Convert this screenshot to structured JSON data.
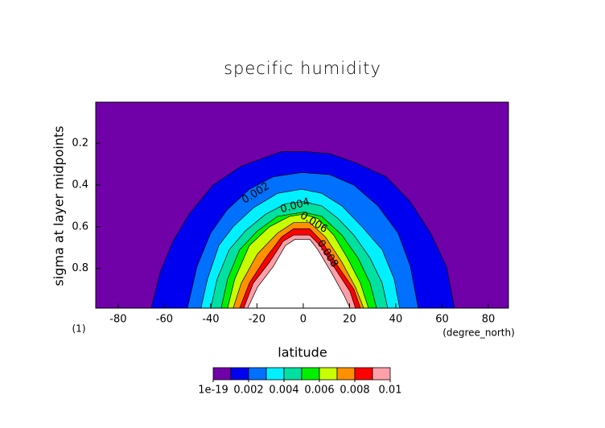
{
  "chart_data": {
    "type": "contour",
    "title": "specific humidity",
    "xlabel": "latitude",
    "ylabel": "sigma at layer midpoints",
    "x_units": "(degree_north)",
    "y_units": "(1)",
    "xlim": [
      -89.7,
      88.7
    ],
    "ylim": [
      0.99,
      0.003
    ],
    "xticks": [
      -80,
      -60,
      -40,
      -20,
      0,
      20,
      40,
      60,
      80
    ],
    "yticks": [
      0.2,
      0.4,
      0.6,
      0.8
    ],
    "colorbar": {
      "levels": [
        1e-19,
        0.001,
        0.002,
        0.003,
        0.004,
        0.005,
        0.006,
        0.007,
        0.008,
        0.009,
        0.01
      ],
      "colors": [
        "#7000a8",
        "#0000f0",
        "#0070ff",
        "#00f0ff",
        "#00e0a0",
        "#00f000",
        "#c8ff00",
        "#ff9000",
        "#ff0000",
        "#ffa0a8"
      ],
      "above_color": "#ffffff",
      "ticks": [
        1e-19,
        0.002,
        0.004,
        0.006,
        0.008,
        0.01
      ]
    },
    "contours": [
      {
        "level": 0.001,
        "x": [
          -65.7,
          -61.6,
          -56.3,
          -49.4,
          -39.0,
          -26.8,
          -14.6,
          -9.4,
          1.0,
          11.5,
          21.9,
          35.8,
          46.3,
          55.0,
          61.9,
          65.4
        ],
        "y": [
          0.99,
          0.81,
          0.67,
          0.54,
          0.4,
          0.31,
          0.26,
          0.24,
          0.24,
          0.25,
          0.29,
          0.36,
          0.48,
          0.63,
          0.79,
          0.99
        ]
      },
      {
        "level": 0.002,
        "x": [
          -50.1,
          -45.9,
          -40.0,
          -33.0,
          -23.3,
          -12.9,
          -0.7,
          11.5,
          21.9,
          32.3,
          41.0,
          46.3,
          49.7
        ],
        "y": [
          0.99,
          0.79,
          0.63,
          0.52,
          0.42,
          0.36,
          0.34,
          0.35,
          0.4,
          0.5,
          0.63,
          0.79,
          0.99
        ]
      },
      {
        "level": 0.003,
        "x": [
          -44.2,
          -41.4,
          -36.5,
          -30.3,
          -21.6,
          -11.1,
          -0.7,
          8.0,
          16.7,
          25.4,
          34.1,
          39.3,
          41.7
        ],
        "y": [
          0.99,
          0.85,
          0.69,
          0.6,
          0.51,
          0.44,
          0.42,
          0.44,
          0.5,
          0.6,
          0.71,
          0.85,
          0.99
        ]
      },
      {
        "level": 0.004,
        "x": [
          -40.0,
          -37.2,
          -32.0,
          -25.0,
          -16.3,
          -7.7,
          0.0,
          8.0,
          15.0,
          21.9,
          28.9,
          34.1,
          36.5
        ],
        "y": [
          0.99,
          0.85,
          0.71,
          0.62,
          0.54,
          0.49,
          0.48,
          0.5,
          0.56,
          0.64,
          0.75,
          0.87,
          0.99
        ]
      },
      {
        "level": 0.005,
        "x": [
          -35.5,
          -32.7,
          -27.5,
          -19.8,
          -11.1,
          0.0,
          8.0,
          16.7,
          23.7,
          28.9,
          31.7
        ],
        "y": [
          0.99,
          0.85,
          0.71,
          0.62,
          0.55,
          0.53,
          0.55,
          0.64,
          0.75,
          0.87,
          0.99
        ]
      },
      {
        "level": 0.006,
        "x": [
          -32.7,
          -29.6,
          -23.3,
          -14.6,
          -5.9,
          0.0,
          6.3,
          13.2,
          19.1,
          24.7,
          28.2
        ],
        "y": [
          0.99,
          0.85,
          0.69,
          0.6,
          0.55,
          0.54,
          0.56,
          0.64,
          0.75,
          0.87,
          0.99
        ]
      },
      {
        "level": 0.007,
        "x": [
          -30.3,
          -26.8,
          -19.8,
          -11.1,
          -4.2,
          2.8,
          9.7,
          16.7,
          22.6,
          26.1
        ],
        "y": [
          0.99,
          0.87,
          0.73,
          0.63,
          0.58,
          0.58,
          0.65,
          0.77,
          0.89,
          0.99
        ]
      },
      {
        "level": 0.008,
        "x": [
          -27.5,
          -23.3,
          -16.3,
          -9.4,
          -4.2,
          2.8,
          8.0,
          15.0,
          21.9,
          24.7
        ],
        "y": [
          0.99,
          0.87,
          0.75,
          0.65,
          0.61,
          0.61,
          0.67,
          0.79,
          0.9,
          0.99
        ]
      },
      {
        "level": 0.009,
        "x": [
          -25.7,
          -21.6,
          -14.6,
          -8.7,
          -4.2,
          2.8,
          7.3,
          14.3,
          20.2,
          22.6
        ],
        "y": [
          0.99,
          0.87,
          0.77,
          0.67,
          0.64,
          0.64,
          0.69,
          0.81,
          0.91,
          0.99
        ]
      },
      {
        "level": 0.01,
        "x": [
          -24.0,
          -19.8,
          -12.9,
          -7.7,
          -3.5,
          2.8,
          6.3,
          12.2,
          17.7,
          20.2
        ],
        "y": [
          0.99,
          0.89,
          0.79,
          0.69,
          0.66,
          0.66,
          0.71,
          0.82,
          0.93,
          0.99
        ]
      }
    ],
    "contour_labels": [
      {
        "text": "0.002",
        "x": -20.5,
        "y": 0.44
      },
      {
        "text": "0.004",
        "x": -3.5,
        "y": 0.5
      },
      {
        "text": "0.006",
        "x": 4.5,
        "y": 0.58
      },
      {
        "text": "0.008",
        "x": 10.4,
        "y": 0.73
      }
    ]
  }
}
